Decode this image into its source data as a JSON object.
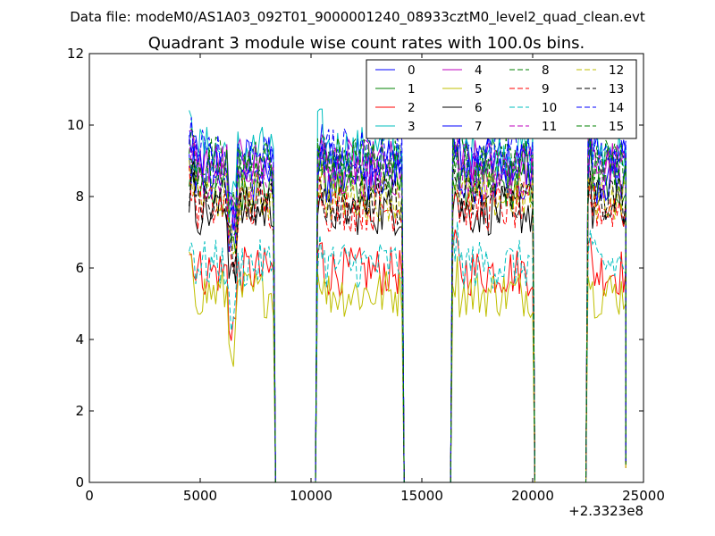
{
  "figure": {
    "suptitle": "Data file: modeM0/AS1A03_092T01_9000001240_08933cztM0_level2_quad_clean.evt"
  },
  "chart_data": {
    "type": "line",
    "title": "Quadrant 3 module wise count rates with 100.0s bins.",
    "xlabel": "",
    "ylabel": "",
    "x_offset_label": "+2.3323e8",
    "xlim": [
      0,
      25000
    ],
    "ylim": [
      0,
      12
    ],
    "xticks": [
      0,
      5000,
      10000,
      15000,
      20000,
      25000
    ],
    "xtick_labels": [
      "0",
      "5000",
      "10000",
      "15000",
      "20000",
      "25000"
    ],
    "yticks": [
      0,
      2,
      4,
      6,
      8,
      10,
      12
    ],
    "ytick_labels": [
      "0",
      "2",
      "4",
      "6",
      "8",
      "10",
      "12"
    ],
    "grid": false,
    "legend_position": "top-right",
    "legend_columns": 4,
    "segments": [
      [
        4500,
        8300
      ],
      [
        10300,
        14100
      ],
      [
        16400,
        20000
      ],
      [
        22500,
        24200
      ]
    ],
    "gaps": [
      [
        8400,
        10200
      ],
      [
        14200,
        16300
      ],
      [
        20100,
        22400
      ]
    ],
    "x_end": 24200,
    "end_values": [
      0.6,
      0.5,
      0.4,
      0.6,
      0.5,
      0.4,
      0.5,
      0.6,
      0.5,
      0.5,
      0.6,
      0.5,
      0.4,
      0.5,
      0.6,
      0.5
    ],
    "series": [
      {
        "name": "0",
        "color": "#0000ff",
        "dash": "solid",
        "level": 9.0
      },
      {
        "name": "1",
        "color": "#008000",
        "dash": "solid",
        "level": 8.3
      },
      {
        "name": "2",
        "color": "#ff0000",
        "dash": "solid",
        "level": 5.9
      },
      {
        "name": "3",
        "color": "#00bfbf",
        "dash": "solid",
        "level": 9.3
      },
      {
        "name": "4",
        "color": "#bf00bf",
        "dash": "solid",
        "level": 8.9
      },
      {
        "name": "5",
        "color": "#bfbf00",
        "dash": "solid",
        "level": 5.3
      },
      {
        "name": "6",
        "color": "#000000",
        "dash": "solid",
        "level": 7.6
      },
      {
        "name": "7",
        "color": "#0000ff",
        "dash": "solid",
        "level": 8.5
      },
      {
        "name": "8",
        "color": "#008000",
        "dash": "dashed",
        "level": 9.0
      },
      {
        "name": "9",
        "color": "#ff0000",
        "dash": "dashed",
        "level": 7.7
      },
      {
        "name": "10",
        "color": "#00bfbf",
        "dash": "dashed",
        "level": 6.1
      },
      {
        "name": "11",
        "color": "#bf00bf",
        "dash": "dashed",
        "level": 8.6
      },
      {
        "name": "12",
        "color": "#bfbf00",
        "dash": "dashed",
        "level": 8.0
      },
      {
        "name": "13",
        "color": "#000000",
        "dash": "dashed",
        "level": 7.9
      },
      {
        "name": "14",
        "color": "#0000ff",
        "dash": "dashed",
        "level": 9.2
      },
      {
        "name": "15",
        "color": "#008000",
        "dash": "dashed",
        "level": 8.8
      }
    ]
  }
}
